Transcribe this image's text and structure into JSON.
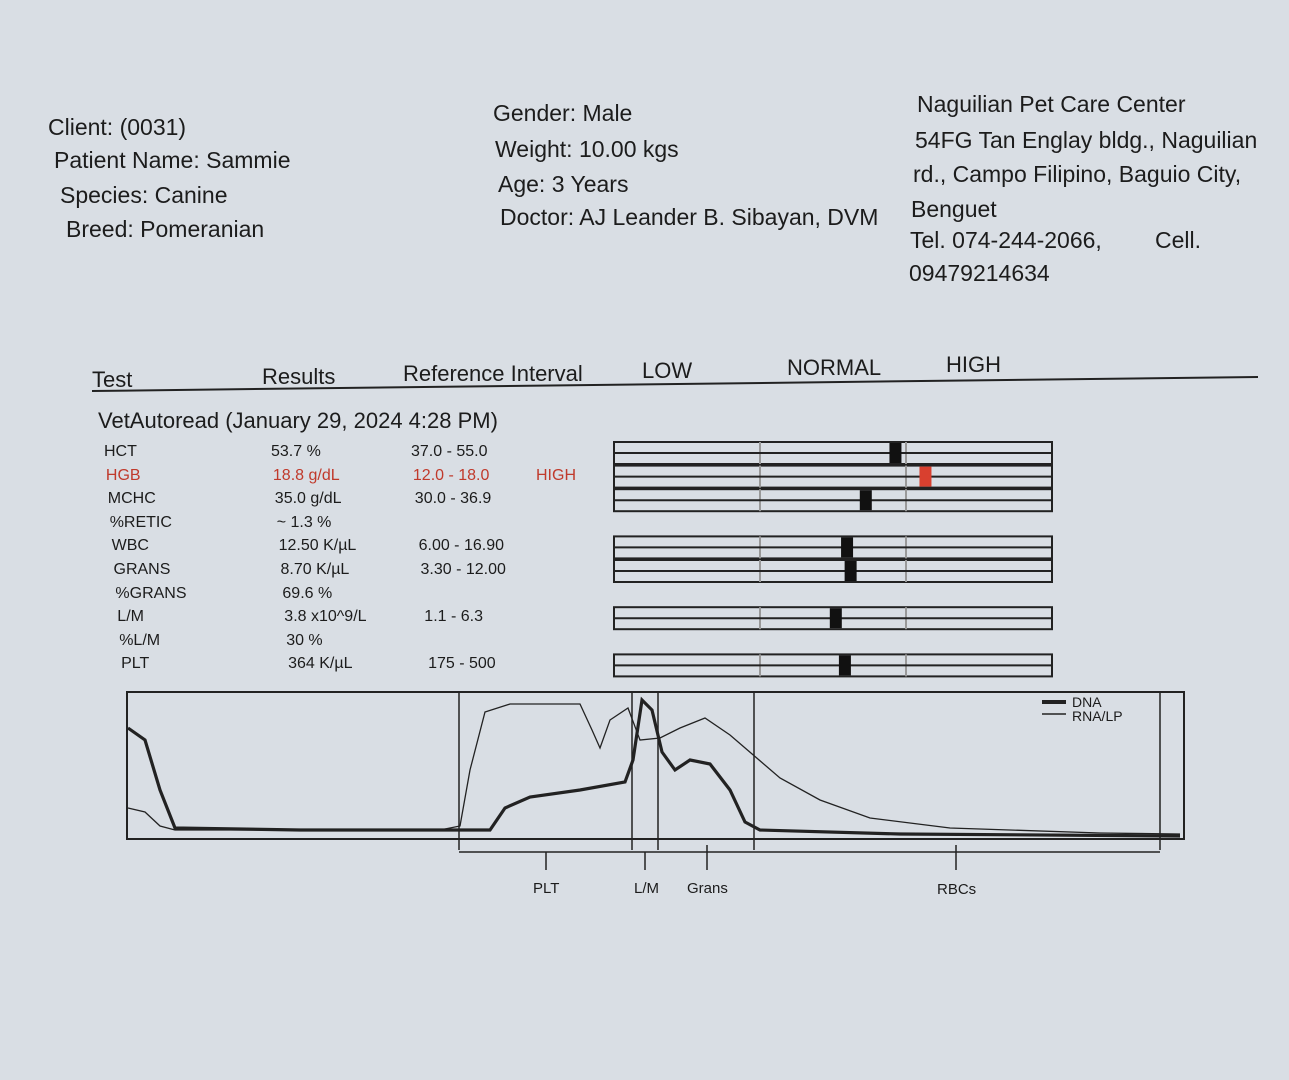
{
  "header": {
    "client": "Client:  (0031)",
    "patient": "Patient Name: Sammie",
    "species": "Species: Canine",
    "breed": "Breed: Pomeranian",
    "gender": "Gender: Male",
    "weight": "Weight: 10.00 kgs",
    "age": "Age: 3 Years",
    "doctor": "Doctor: AJ Leander B. Sibayan, DVM",
    "clinic_name": "Naguilian Pet Care Center",
    "address_1": "54FG Tan Englay bldg., Naguilian",
    "address_2": "rd., Campo Filipino, Baguio City,",
    "address_3": "Benguet",
    "tel": "Tel. 074-244-2066,",
    "cell_label": "Cell.",
    "cell": "09479214634"
  },
  "table": {
    "columns": [
      "Test",
      "Results",
      "Reference Interval",
      "LOW",
      "NORMAL",
      "HIGH"
    ],
    "session": "VetAutoread (January 29, 2024 4:28 PM)",
    "rows": [
      {
        "test": "HCT",
        "result": "53.7 %",
        "reference": "37.0 - 55.0"
      },
      {
        "test": "HGB",
        "result": "18.8 g/dL",
        "reference": "12.0 - 18.0",
        "flag": "HIGH"
      },
      {
        "test": "MCHC",
        "result": "35.0 g/dL",
        "reference": "30.0 - 36.9"
      },
      {
        "test": "%RETIC",
        "result": "~ 1.3 %"
      },
      {
        "test": "WBC",
        "result": "12.50 K/µL",
        "reference": "6.00 - 16.90"
      },
      {
        "test": "GRANS",
        "result": "8.70 K/µL",
        "reference": "3.30 - 12.00"
      },
      {
        "test": "%GRANS",
        "result": "69.6 %"
      },
      {
        "test": "L/M",
        "result": "3.8 x10^9/L",
        "reference": "1.1 - 6.3"
      },
      {
        "test": "%L/M",
        "result": "30 %"
      },
      {
        "test": "PLT",
        "result": "364 K/µL",
        "reference": "175 - 500"
      }
    ]
  },
  "histogram": {
    "legend": [
      "DNA",
      "RNA/LP"
    ],
    "regions": [
      "PLT",
      "L/M",
      "Grans",
      "RBCs"
    ]
  }
}
